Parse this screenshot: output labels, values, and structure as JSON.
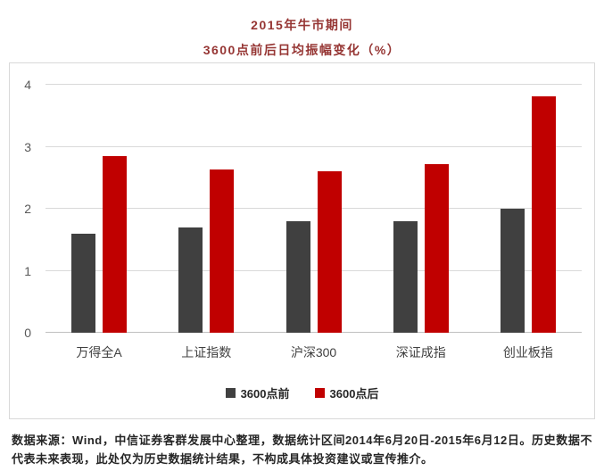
{
  "title": {
    "line1": "2015年牛市期间",
    "line2": "3600点前后日均振幅变化（%）"
  },
  "chart_data": {
    "type": "bar",
    "title": "2015年牛市期间 3600点前后日均振幅变化（%）",
    "categories": [
      "万得全A",
      "上证指数",
      "沪深300",
      "深证成指",
      "创业板指"
    ],
    "series": [
      {
        "name": "3600点前",
        "color": "#404040",
        "values": [
          1.6,
          1.7,
          1.8,
          1.8,
          2.0
        ]
      },
      {
        "name": "3600点后",
        "color": "#c00000",
        "values": [
          2.85,
          2.63,
          2.61,
          2.72,
          3.82
        ]
      }
    ],
    "xlabel": "",
    "ylabel": "",
    "ylim": [
      0,
      4
    ],
    "yticks": [
      0,
      1,
      2,
      3,
      4
    ],
    "grid": true,
    "legend_position": "bottom"
  },
  "footer": {
    "text": "数据来源：Wind，中信证券客群发展中心整理，数据统计区间2014年6月20日-2015年6月12日。历史数据不代表未来表现，此处仅为历史数据统计结果，不构成具体投资建议或宣传推介。"
  }
}
